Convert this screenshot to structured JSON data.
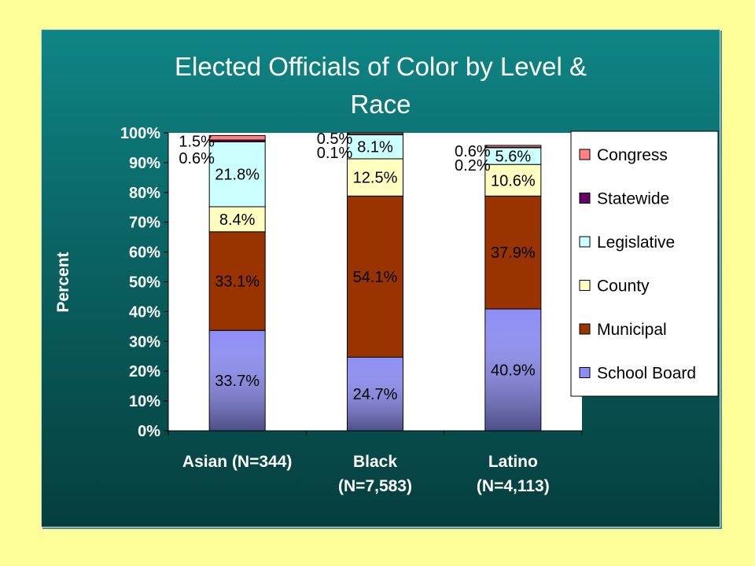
{
  "chart_data": {
    "type": "stacked-bar",
    "title_lines": [
      "Elected Officials of Color by Level &",
      "Race"
    ],
    "ylabel": "Percent",
    "xlabel": "",
    "ylim": [
      0,
      100
    ],
    "ytick_labels": [
      "0%",
      "10%",
      "20%",
      "30%",
      "40%",
      "50%",
      "60%",
      "70%",
      "80%",
      "90%",
      "100%"
    ],
    "categories": [
      [
        "Asian (N=344)"
      ],
      [
        "Black",
        "(N=7,583)"
      ],
      [
        "Latino",
        "(N=4,113)"
      ]
    ],
    "series": [
      {
        "name": "School Board",
        "color": "#8d8df5",
        "values": [
          33.7,
          24.7,
          40.9
        ],
        "labels": [
          "33.7%",
          "24.7%",
          "40.9%"
        ]
      },
      {
        "name": "Municipal",
        "color": "#993300",
        "values": [
          33.1,
          54.1,
          37.9
        ],
        "labels": [
          "33.1%",
          "54.1%",
          "37.9%"
        ]
      },
      {
        "name": "County",
        "color": "#ffffc0",
        "values": [
          8.4,
          12.5,
          10.6
        ],
        "labels": [
          "8.4%",
          "12.5%",
          "10.6%"
        ]
      },
      {
        "name": "Legislative",
        "color": "#ccffff",
        "values": [
          21.8,
          8.1,
          5.6
        ],
        "labels": [
          "21.8%",
          "8.1%",
          "5.6%"
        ]
      },
      {
        "name": "Statewide",
        "color": "#660066",
        "values": [
          0.6,
          0.1,
          0.2
        ],
        "labels": [
          "0.6%",
          "0.1%",
          "0.2%"
        ]
      },
      {
        "name": "Congress",
        "color": "#ff8080",
        "values": [
          1.5,
          0.5,
          0.6
        ],
        "labels": [
          "1.5%",
          "0.5%",
          "0.6%"
        ]
      }
    ],
    "legend_order": [
      "Congress",
      "Statewide",
      "Legislative",
      "County",
      "Municipal",
      "School Board"
    ],
    "legend_position": "right",
    "grid": false
  }
}
